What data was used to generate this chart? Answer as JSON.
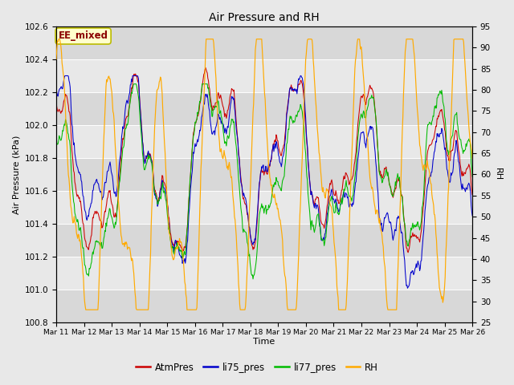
{
  "title": "Air Pressure and RH",
  "xlabel": "Time",
  "ylabel_left": "Air Pressure (kPa)",
  "ylabel_right": "RH",
  "annotation": "EE_mixed",
  "ylim_left": [
    100.8,
    102.6
  ],
  "ylim_right": [
    25,
    95
  ],
  "yticks_left": [
    100.8,
    101.0,
    101.2,
    101.4,
    101.6,
    101.8,
    102.0,
    102.2,
    102.4,
    102.6
  ],
  "yticks_right": [
    25,
    30,
    35,
    40,
    45,
    50,
    55,
    60,
    65,
    70,
    75,
    80,
    85,
    90,
    95
  ],
  "xtick_labels": [
    "Mar 11",
    "Mar 12",
    "Mar 13",
    "Mar 14",
    "Mar 15",
    "Mar 16",
    "Mar 17",
    "Mar 18",
    "Mar 19",
    "Mar 20",
    "Mar 21",
    "Mar 22",
    "Mar 23",
    "Mar 24",
    "Mar 25",
    "Mar 26"
  ],
  "color_atm": "#cc0000",
  "color_li75": "#0000cc",
  "color_li77": "#00bb00",
  "color_rh": "#ffaa00",
  "fig_bg": "#e8e8e8",
  "plot_bg": "#d8d8d8",
  "band_light": "#e8e8e8",
  "legend_labels": [
    "AtmPres",
    "li75_pres",
    "li77_pres",
    "RH"
  ],
  "legend_colors": [
    "#cc0000",
    "#0000cc",
    "#00bb00",
    "#ffaa00"
  ],
  "n_points": 720,
  "n_days": 15
}
